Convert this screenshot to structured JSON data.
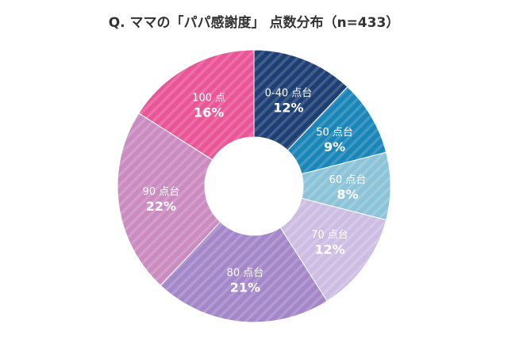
{
  "chart_data": {
    "type": "pie",
    "title": "Q. ママの「パパ感謝度」 点数分布（n=433）",
    "donut": true,
    "legend": "none",
    "slices": [
      {
        "label": "0-40 点台",
        "value": 12,
        "display": "12%",
        "color": "#1e3f73"
      },
      {
        "label": "50 点台",
        "value": 9,
        "display": "9%",
        "color": "#1a86b7"
      },
      {
        "label": "60 点台",
        "value": 8,
        "display": "8%",
        "color": "#8cc3d8"
      },
      {
        "label": "70 点台",
        "value": 12,
        "display": "12%",
        "color": "#cdbde3"
      },
      {
        "label": "80 点台",
        "value": 21,
        "display": "21%",
        "color": "#a487c9"
      },
      {
        "label": "90 点台",
        "value": 22,
        "display": "22%",
        "color": "#cb8bc0"
      },
      {
        "label": "100 点",
        "value": 16,
        "display": "16%",
        "color": "#e95596"
      }
    ]
  }
}
